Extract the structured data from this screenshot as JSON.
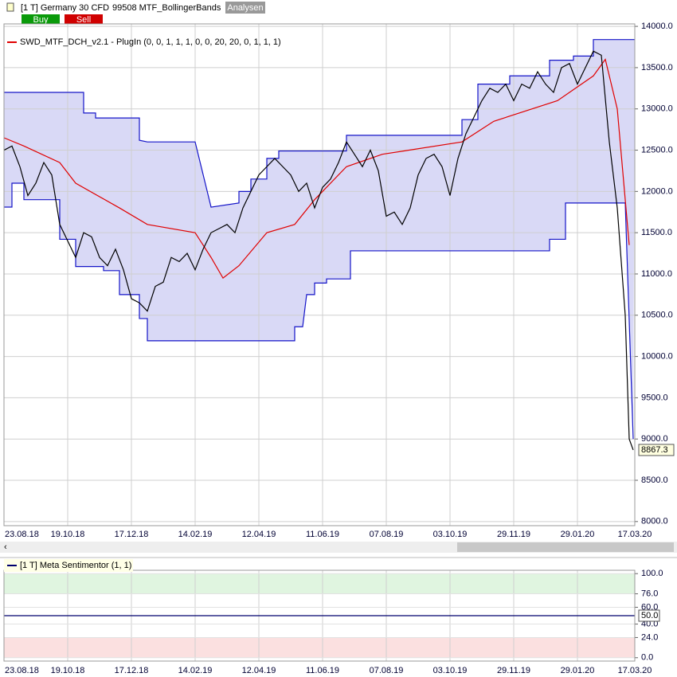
{
  "header": {
    "instrument": "[1 T] Germany 30 CFD",
    "strategy": "99508 MTF_BollingerBands",
    "analysis_button": "Analysen",
    "buy_button": "Buy",
    "sell_button": "Sell"
  },
  "chart_data": [
    {
      "type": "line",
      "indicator_label": "SWD_MTF_DCH_v2.1 - PlugIn  (0, 0, 1, 1, 1, 0, 0, 20, 20, 0, 1, 1, 1)",
      "xlim": [
        0,
        396
      ],
      "xticks": [
        {
          "value": 0,
          "label": "23.08.18"
        },
        {
          "value": 40,
          "label": "19.10.18"
        },
        {
          "value": 80,
          "label": "17.12.18"
        },
        {
          "value": 120,
          "label": "14.02.19"
        },
        {
          "value": 160,
          "label": "12.04.19"
        },
        {
          "value": 200,
          "label": "11.06.19"
        },
        {
          "value": 240,
          "label": "07.08.19"
        },
        {
          "value": 280,
          "label": "03.10.19"
        },
        {
          "value": 320,
          "label": "29.11.19"
        },
        {
          "value": 360,
          "label": "29.01.20"
        },
        {
          "value": 396,
          "label": "17.03.20"
        }
      ],
      "ylim": [
        7950,
        14030
      ],
      "yticks": [
        {
          "value": 8000,
          "label": "8000.0"
        },
        {
          "value": 8500,
          "label": "8500.0"
        },
        {
          "value": 9000,
          "label": "9000.0"
        },
        {
          "value": 9500,
          "label": "9500.0"
        },
        {
          "value": 10000,
          "label": "10000.0"
        },
        {
          "value": 10500,
          "label": "10500.0"
        },
        {
          "value": 11000,
          "label": "11000.0"
        },
        {
          "value": 11500,
          "label": "11500.0"
        },
        {
          "value": 12000,
          "label": "12000.0"
        },
        {
          "value": 12500,
          "label": "12500.0"
        },
        {
          "value": 13000,
          "label": "13000.0"
        },
        {
          "value": 13500,
          "label": "13500.0"
        },
        {
          "value": 14000,
          "label": "14000.0"
        }
      ],
      "grid": true,
      "channel_fill": "#d9d9f6",
      "series": [
        {
          "color": "#1414c8",
          "x": [
            0,
            50,
            50,
            57.5,
            57.5,
            85,
            85,
            90,
            120,
            130,
            147.5,
            147.5,
            155,
            155,
            165,
            165,
            172.5,
            172.5,
            215,
            215,
            287.5,
            287.5,
            297.5,
            297.5,
            317.5,
            317.5,
            342.5,
            342.5,
            357.5,
            357.5,
            370,
            370,
            396
          ],
          "values": [
            13200,
            13200,
            12950,
            12950,
            12890,
            12890,
            12620,
            12600,
            12600,
            11810,
            11860,
            12000,
            12000,
            12150,
            12150,
            12400,
            12400,
            12490,
            12490,
            12680,
            12680,
            12870,
            12870,
            13300,
            13300,
            13400,
            13400,
            13590,
            13590,
            13640,
            13640,
            13840,
            13840
          ]
        },
        {
          "color": "#1414c8",
          "x": [
            0,
            5,
            5,
            12.5,
            12.5,
            35,
            35,
            45,
            45,
            62.5,
            62.5,
            72.5,
            72.5,
            85,
            85,
            90,
            90,
            182.5,
            182.5,
            187.5,
            190,
            195,
            195,
            202.5,
            202.5,
            217.5,
            217.5,
            342.5,
            342.5,
            352.5,
            352.5,
            390,
            395
          ],
          "values": [
            11810,
            11810,
            12100,
            12100,
            11900,
            11900,
            11420,
            11420,
            11090,
            11090,
            11040,
            11040,
            10750,
            10750,
            10460,
            10460,
            10190,
            10190,
            10360,
            10360,
            10750,
            10750,
            10890,
            10890,
            10940,
            10940,
            11280,
            11280,
            11420,
            11420,
            11860,
            11860,
            9000
          ]
        },
        {
          "color": "#e00000",
          "x": [
            0,
            12.5,
            35,
            45,
            72.5,
            90,
            120,
            130,
            137.5,
            147.5,
            165,
            182.5,
            195,
            215,
            237.5,
            287.5,
            307.5,
            347.5,
            370,
            377.5,
            385,
            392.5
          ],
          "values": [
            12650,
            12550,
            12350,
            12100,
            11800,
            11600,
            11500,
            11200,
            10950,
            11100,
            11500,
            11600,
            11900,
            12300,
            12450,
            12600,
            12850,
            13100,
            13400,
            13600,
            13000,
            11350
          ]
        },
        {
          "color": "#000000",
          "x": [
            0,
            5,
            10,
            15,
            20,
            25,
            30,
            35,
            40,
            45,
            50,
            55,
            60,
            65,
            70,
            75,
            80,
            85,
            90,
            95,
            100,
            105,
            110,
            115,
            120,
            125,
            130,
            135,
            140,
            145,
            150,
            155,
            160,
            165,
            170,
            175,
            180,
            185,
            190,
            195,
            200,
            205,
            210,
            215,
            220,
            225,
            230,
            235,
            240,
            245,
            250,
            255,
            260,
            265,
            270,
            275,
            280,
            285,
            290,
            295,
            300,
            305,
            310,
            315,
            320,
            325,
            330,
            335,
            340,
            345,
            350,
            355,
            360,
            365,
            370,
            375,
            380,
            385,
            390,
            392.5,
            395
          ],
          "values": [
            12500,
            12550,
            12300,
            11950,
            12100,
            12350,
            12200,
            11600,
            11400,
            11200,
            11500,
            11450,
            11200,
            11100,
            11300,
            11050,
            10700,
            10650,
            10550,
            10850,
            10900,
            11200,
            11150,
            11250,
            11050,
            11300,
            11500,
            11550,
            11600,
            11500,
            11800,
            12000,
            12200,
            12300,
            12400,
            12300,
            12200,
            12000,
            12100,
            11800,
            12050,
            12150,
            12350,
            12600,
            12450,
            12300,
            12500,
            12250,
            11700,
            11750,
            11600,
            11800,
            12200,
            12400,
            12450,
            12300,
            11950,
            12400,
            12700,
            12900,
            13100,
            13250,
            13200,
            13300,
            13100,
            13300,
            13250,
            13450,
            13300,
            13200,
            13500,
            13550,
            13300,
            13500,
            13700,
            13650,
            12600,
            11800,
            10500,
            9000,
            8867.3
          ],
          "last_label": "8867.3"
        }
      ]
    },
    {
      "type": "line",
      "indicator_label": "[1 T] Meta Sentimentor  (1, 1)",
      "xlim": [
        0,
        396
      ],
      "ylim": [
        -4,
        104
      ],
      "yticks": [
        {
          "value": 0,
          "label": "0.0"
        },
        {
          "value": 24,
          "label": "24.0"
        },
        {
          "value": 40,
          "label": "40.0"
        },
        {
          "value": 60,
          "label": "60.0"
        },
        {
          "value": 76,
          "label": "76.0"
        },
        {
          "value": 100,
          "label": "100.0"
        }
      ],
      "zones": [
        {
          "from": 76,
          "to": 100,
          "color": "#e0f5e0"
        },
        {
          "from": 0,
          "to": 24,
          "color": "#fbe0e0"
        }
      ],
      "series": [
        {
          "color": "#00006e",
          "x": [
            0,
            396
          ],
          "values": [
            50,
            50
          ],
          "value_labels": [
            "50.0",
            "50.0"
          ]
        }
      ]
    }
  ]
}
